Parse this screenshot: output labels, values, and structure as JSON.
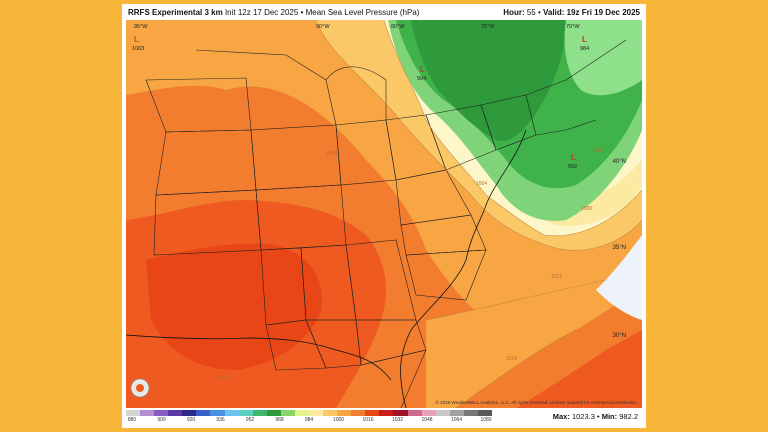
{
  "header": {
    "model": "RRFS Experimental 3 km",
    "init": "Init 12z 17 Dec 2025",
    "separator": "•",
    "field": "Mean Sea Level Pressure (hPa)",
    "hour_label": "Hour:",
    "hour_value": "55",
    "valid_label": "Valid:",
    "valid_value": "19z Fri 19 Dec 2025"
  },
  "map": {
    "lat_labels": [
      "40°N",
      "35°N",
      "30°N"
    ],
    "lon_labels": [
      "95°W",
      "90°W",
      "80°W",
      "75°W",
      "70°W"
    ],
    "isobar_labels": [
      "1020",
      "1016",
      "1012",
      "1008",
      "1004",
      "1000",
      "996"
    ],
    "pressure_centers": [
      {
        "symbol": "L",
        "value": "1003",
        "color": "#b05a1a"
      },
      {
        "symbol": "L",
        "value": "994",
        "color": "#c23a2a"
      },
      {
        "symbol": "L",
        "value": "992",
        "color": "#c23a2a"
      },
      {
        "symbol": "L",
        "value": "984",
        "color": "#c23a2a"
      }
    ],
    "colors": {
      "green_dark": "#2e9a3c",
      "green_mid": "#3fb24a",
      "green_light": "#7fd47a",
      "yellow_light": "#fdf6c8",
      "yellow": "#fce9a2",
      "orange_light": "#fbc868",
      "orange": "#f8a644",
      "orange_deep": "#f37d2e",
      "red_orange": "#ee5a1f",
      "red": "#e84616"
    },
    "copyright": "© 2025 WeatherBELL Analytics, LLC. All rights reserved. License required for commercial distribution."
  },
  "scale": {
    "labels": [
      "880",
      "900",
      "920",
      "936",
      "952",
      "968",
      "984",
      "1000",
      "1016",
      "1032",
      "1048",
      "1064",
      "1080"
    ],
    "colors": [
      "#d4d4d4",
      "#b48cd2",
      "#8a5ac4",
      "#5a3aa8",
      "#2e2a8a",
      "#3a5ec8",
      "#4a90e2",
      "#6ac4ef",
      "#5cd0c0",
      "#3db86a",
      "#2e9a3c",
      "#8cd46a",
      "#e6f28a",
      "#fce9a2",
      "#fbc868",
      "#f8a644",
      "#f37d2e",
      "#e84616",
      "#c81e1e",
      "#a0142a",
      "#d06a8c",
      "#e8a0b8",
      "#c8c8c8",
      "#a0a0a0",
      "#787878",
      "#5a5a5a"
    ]
  },
  "stats": {
    "max_label": "Max:",
    "max_value": "1023.3",
    "min_label": "Min:",
    "min_value": "982.2"
  }
}
